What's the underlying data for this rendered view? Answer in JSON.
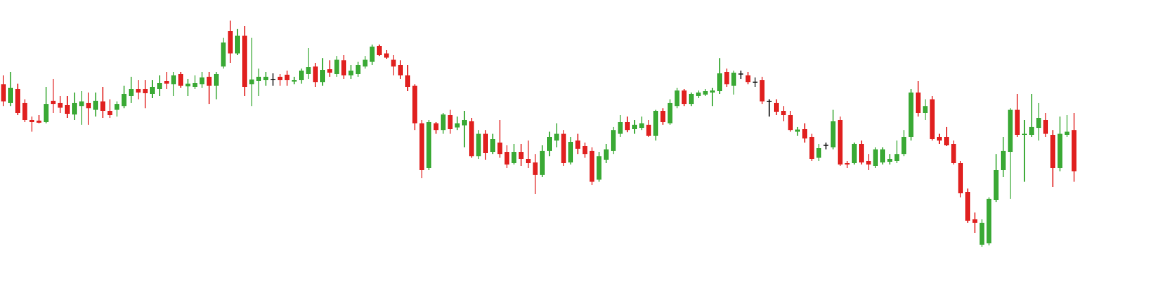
{
  "chart_data": {
    "type": "candlestick",
    "ylim": [
      0,
      400
    ],
    "up_color": "#3aa935",
    "down_color": "#e0201f",
    "flat_color": "#111111",
    "open": [
      277,
      250,
      270,
      250,
      225,
      224,
      222,
      253,
      250,
      247,
      233,
      245,
      250,
      240,
      252,
      238,
      240,
      245,
      260,
      270,
      270,
      263,
      270,
      282,
      277,
      292,
      274,
      273,
      277,
      288,
      275,
      303,
      355,
      322,
      348,
      277,
      282,
      283,
      284,
      288,
      291,
      281,
      283,
      292,
      303,
      280,
      299,
      292,
      312,
      290,
      292,
      303,
      310,
      333,
      322,
      313,
      305,
      290,
      275,
      220,
      155,
      220,
      210,
      232,
      214,
      217,
      223,
      172,
      205,
      178,
      192,
      178,
      162,
      178,
      168,
      163,
      145,
      180,
      195,
      205,
      163,
      195,
      187,
      180,
      138,
      167,
      180,
      205,
      222,
      212,
      213,
      218,
      202,
      238,
      220,
      245,
      268,
      248,
      260,
      262,
      265,
      267,
      295,
      275,
      292,
      290,
      280,
      283,
      252,
      250,
      238,
      232,
      208,
      212,
      200,
      170,
      188,
      185,
      225,
      162,
      162,
      190,
      165,
      158,
      163,
      164,
      165,
      175,
      200,
      265,
      235,
      255,
      200,
      200,
      190,
      162,
      120,
      80,
      43,
      45,
      108,
      152,
      178,
      240,
      203,
      203,
      213,
      225,
      203,
      155,
      203,
      210
    ],
    "high": [
      290,
      295,
      278,
      255,
      230,
      232,
      273,
      285,
      260,
      260,
      265,
      267,
      265,
      265,
      273,
      255,
      252,
      275,
      288,
      283,
      283,
      283,
      290,
      295,
      295,
      295,
      285,
      290,
      295,
      295,
      295,
      345,
      370,
      358,
      362,
      345,
      300,
      295,
      293,
      292,
      297,
      288,
      300,
      330,
      308,
      315,
      312,
      318,
      320,
      305,
      310,
      318,
      335,
      335,
      327,
      320,
      312,
      305,
      277,
      225,
      225,
      222,
      235,
      240,
      230,
      238,
      228,
      210,
      210,
      205,
      225,
      188,
      190,
      190,
      195,
      175,
      188,
      208,
      220,
      210,
      200,
      205,
      192,
      185,
      178,
      190,
      215,
      232,
      230,
      225,
      230,
      225,
      240,
      242,
      255,
      272,
      270,
      265,
      268,
      270,
      272,
      315,
      300,
      297,
      297,
      295,
      287,
      288,
      255,
      255,
      245,
      238,
      215,
      220,
      205,
      190,
      192,
      240,
      230,
      165,
      192,
      195,
      175,
      185,
      185,
      175,
      195,
      210,
      270,
      282,
      255,
      260,
      205,
      215,
      195,
      165,
      125,
      90,
      80,
      112,
      175,
      200,
      242,
      263,
      225,
      263,
      250,
      235,
      210,
      230,
      232,
      235
    ],
    "low": [
      245,
      245,
      232,
      222,
      208,
      220,
      220,
      235,
      235,
      228,
      225,
      218,
      218,
      230,
      228,
      228,
      230,
      242,
      250,
      255,
      242,
      257,
      260,
      270,
      260,
      272,
      260,
      270,
      272,
      248,
      255,
      300,
      308,
      320,
      260,
      245,
      260,
      275,
      275,
      275,
      275,
      277,
      278,
      285,
      273,
      275,
      288,
      288,
      285,
      285,
      288,
      300,
      305,
      318,
      314,
      290,
      285,
      267,
      210,
      140,
      152,
      205,
      205,
      205,
      210,
      185,
      170,
      168,
      167,
      175,
      170,
      155,
      160,
      158,
      155,
      117,
      142,
      172,
      185,
      158,
      160,
      175,
      170,
      130,
      135,
      162,
      175,
      200,
      207,
      205,
      210,
      200,
      195,
      218,
      218,
      242,
      245,
      245,
      257,
      260,
      245,
      263,
      273,
      262,
      285,
      277,
      273,
      248,
      230,
      232,
      223,
      208,
      202,
      192,
      165,
      165,
      182,
      182,
      158,
      155,
      160,
      160,
      152,
      155,
      160,
      160,
      162,
      172,
      195,
      230,
      225,
      195,
      190,
      187,
      160,
      112,
      75,
      60,
      40,
      42,
      105,
      142,
      110,
      200,
      135,
      200,
      195,
      200,
      127,
      150,
      200,
      135
    ],
    "close": [
      252,
      272,
      235,
      225,
      222,
      221,
      248,
      248,
      243,
      234,
      250,
      252,
      242,
      253,
      238,
      232,
      248,
      263,
      270,
      265,
      264,
      273,
      279,
      278,
      290,
      275,
      278,
      279,
      287,
      275,
      292,
      338,
      322,
      348,
      273,
      284,
      288,
      288,
      284,
      283,
      283,
      283,
      297,
      302,
      280,
      298,
      294,
      313,
      290,
      297,
      305,
      313,
      332,
      320,
      316,
      303,
      290,
      273,
      220,
      152,
      222,
      210,
      233,
      212,
      220,
      225,
      172,
      205,
      177,
      197,
      175,
      160,
      178,
      168,
      162,
      145,
      180,
      200,
      205,
      162,
      193,
      183,
      175,
      135,
      172,
      182,
      210,
      222,
      210,
      218,
      220,
      202,
      238,
      222,
      250,
      268,
      248,
      263,
      265,
      267,
      268,
      293,
      277,
      294,
      292,
      280,
      280,
      252,
      252,
      237,
      232,
      210,
      211,
      198,
      168,
      184,
      188,
      223,
      160,
      160,
      190,
      163,
      160,
      182,
      182,
      168,
      175,
      200,
      265,
      235,
      245,
      197,
      195,
      188,
      162,
      118,
      78,
      75,
      75,
      110,
      152,
      180,
      240,
      203,
      205,
      215,
      228,
      205,
      155,
      205,
      208,
      150
    ]
  }
}
